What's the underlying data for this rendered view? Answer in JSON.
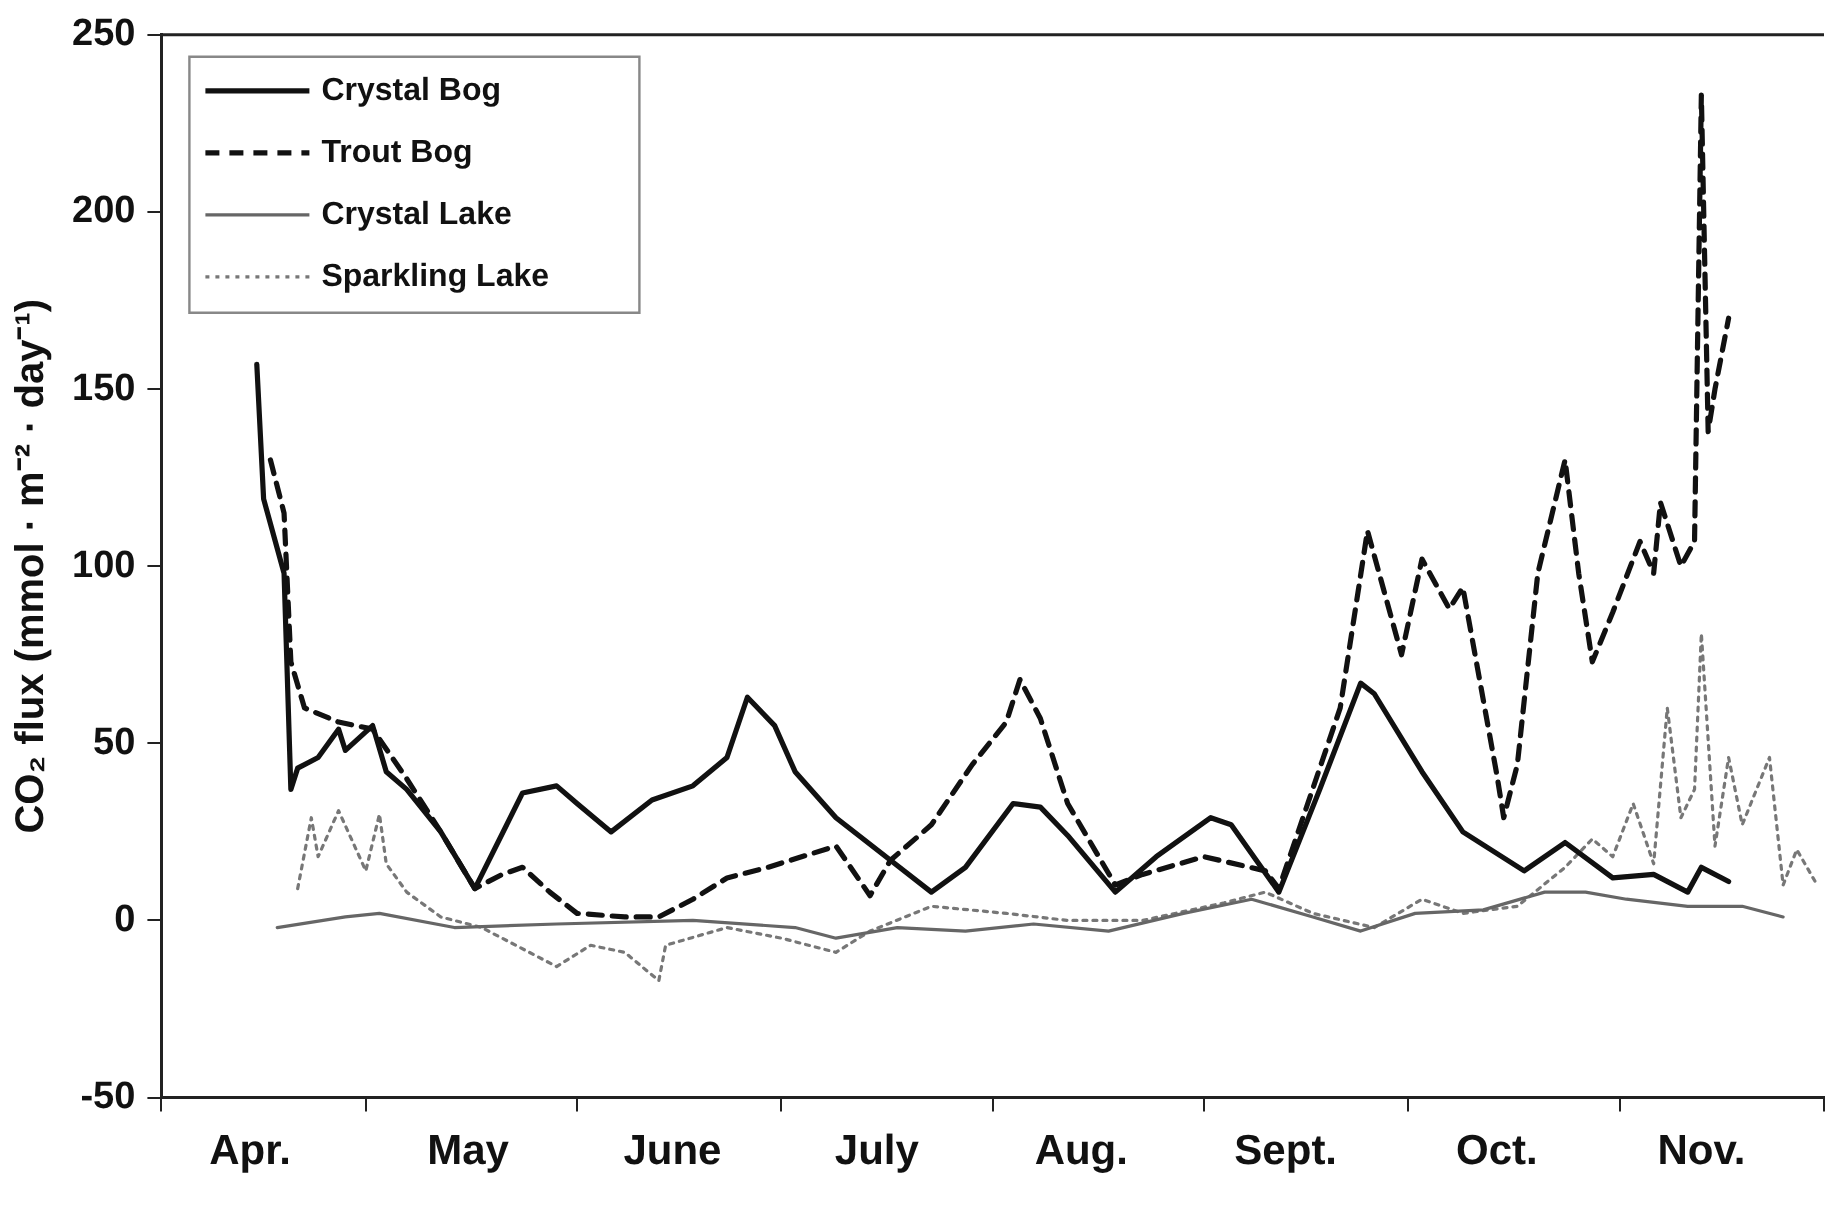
{
  "chart_data": {
    "type": "line",
    "ylabel": "CO₂ flux (mmol · m⁻² · day⁻¹)",
    "xlim": [
      "--04-01",
      "--12-01"
    ],
    "xticks": [
      {
        "value": "--04-01",
        "label": null
      },
      {
        "value": "--04-14",
        "label": "Apr."
      },
      {
        "value": "--05-01",
        "label": null
      },
      {
        "value": "--05-16",
        "label": "May"
      },
      {
        "value": "--06-01",
        "label": null
      },
      {
        "value": "--06-15",
        "label": "June"
      },
      {
        "value": "--07-01",
        "label": null
      },
      {
        "value": "--07-15",
        "label": "July"
      },
      {
        "value": "--08-01",
        "label": null
      },
      {
        "value": "--08-14",
        "label": "Aug."
      },
      {
        "value": "--09-01",
        "label": null
      },
      {
        "value": "--09-13",
        "label": "Sept."
      },
      {
        "value": "--10-01",
        "label": null
      },
      {
        "value": "--10-14",
        "label": "Oct."
      },
      {
        "value": "--11-01",
        "label": null
      },
      {
        "value": "--11-13",
        "label": "Nov."
      },
      {
        "value": "--12-01",
        "label": null
      }
    ],
    "ylim": [
      -50,
      250
    ],
    "yticks": [
      -50,
      0,
      50,
      100,
      150,
      200,
      250
    ],
    "grid": false,
    "legend": "top left",
    "marker": "none",
    "series": [
      {
        "name": "Crystal Bog",
        "color": "#111111",
        "line_style": "solid",
        "x": [
          "--04-15",
          "--04-16",
          "--04-19",
          "--04-20",
          "--04-21",
          "--04-24",
          "--04-27",
          "--04-28",
          "--05-02",
          "--05-04",
          "--05-07",
          "--05-12",
          "--05-17",
          "--05-24",
          "--05-29",
          "--06-01",
          "--06-06",
          "--06-12",
          "--06-18",
          "--06-23",
          "--06-26",
          "--06-30",
          "--07-03",
          "--07-09",
          "--07-17",
          "--07-23",
          "--07-28",
          "--08-04",
          "--08-08",
          "--08-12",
          "--08-19",
          "--08-25",
          "--09-02",
          "--09-05",
          "--09-12",
          "--09-18",
          "--09-24",
          "--09-26",
          "--10-03",
          "--10-09",
          "--10-18",
          "--10-24",
          "--10-31",
          "--11-06",
          "--11-11",
          "--11-13",
          "--11-17"
        ],
        "values": [
          157,
          119,
          98,
          37,
          43,
          46,
          54,
          48,
          55,
          42,
          37,
          25,
          9,
          36,
          38,
          33,
          25,
          34,
          38,
          46,
          63,
          55,
          42,
          29,
          17,
          8,
          15,
          33,
          32,
          24,
          8,
          18,
          29,
          27,
          8,
          37,
          67,
          64,
          42,
          25,
          14,
          22,
          12,
          13,
          8,
          15,
          11
        ]
      },
      {
        "name": "Trout Bog",
        "color": "#111111",
        "line_style": "dashed",
        "x": [
          "--04-17",
          "--04-19",
          "--04-20",
          "--04-22",
          "--04-27",
          "--05-02",
          "--05-07",
          "--05-12",
          "--05-17",
          "--05-21",
          "--05-24",
          "--05-28",
          "--06-01",
          "--06-08",
          "--06-13",
          "--06-18",
          "--06-23",
          "--06-29",
          "--07-09",
          "--07-14",
          "--07-17",
          "--07-23",
          "--07-29",
          "--08-03",
          "--08-05",
          "--08-08",
          "--08-12",
          "--08-19",
          "--08-23",
          "--09-01",
          "--09-10",
          "--09-12",
          "--09-21",
          "--09-25",
          "--09-30",
          "--10-03",
          "--10-07",
          "--10-09",
          "--10-14",
          "--10-15",
          "--10-17",
          "--10-20",
          "--10-24",
          "--10-26",
          "--10-28",
          "--10-31",
          "--11-04",
          "--11-06",
          "--11-07",
          "--11-10",
          "--11-12",
          "--11-13",
          "--11-14",
          "--11-15",
          "--11-17"
        ],
        "values": [
          130,
          115,
          73,
          60,
          56,
          54,
          40,
          25,
          9,
          13,
          15,
          8,
          2,
          1,
          1,
          6,
          12,
          15,
          21,
          7,
          17,
          27,
          44,
          56,
          68,
          57,
          33,
          10,
          13,
          18,
          14,
          9,
          60,
          110,
          75,
          102,
          88,
          94,
          41,
          29,
          44,
          98,
          130,
          98,
          73,
          87,
          107,
          98,
          118,
          100,
          107,
          233,
          138,
          150,
          170
        ]
      },
      {
        "name": "Crystal Lake",
        "color": "#666666",
        "line_style": "solid",
        "x": [
          "--04-18",
          "--04-28",
          "--05-03",
          "--05-14",
          "--05-29",
          "--06-18",
          "--07-03",
          "--07-09",
          "--07-18",
          "--07-28",
          "--08-07",
          "--08-18",
          "--08-29",
          "--09-08",
          "--09-17",
          "--09-24",
          "--10-02",
          "--10-12",
          "--10-21",
          "--10-27",
          "--11-02",
          "--11-11",
          "--11-19",
          "--11-25"
        ],
        "values": [
          -2,
          1,
          2,
          -2,
          -1,
          0,
          -2,
          -5,
          -2,
          -3,
          -1,
          -3,
          2,
          6,
          1,
          -3,
          2,
          3,
          8,
          8,
          6,
          4,
          4,
          1
        ]
      },
      {
        "name": "Sparkling Lake",
        "color": "#777777",
        "line_style": "dotted",
        "x": [
          "--04-21",
          "--04-23",
          "--04-24",
          "--04-27",
          "--05-01",
          "--05-03",
          "--05-04",
          "--05-07",
          "--05-12",
          "--05-18",
          "--05-25",
          "--05-29",
          "--06-03",
          "--06-08",
          "--06-13",
          "--06-14",
          "--06-23",
          "--07-01",
          "--07-09",
          "--07-14",
          "--07-23",
          "--08-03",
          "--08-12",
          "--08-23",
          "--09-04",
          "--09-10",
          "--09-17",
          "--09-26",
          "--10-03",
          "--10-09",
          "--10-17",
          "--10-24",
          "--10-28",
          "--10-31",
          "--11-03",
          "--11-06",
          "--11-08",
          "--11-10",
          "--11-12",
          "--11-13",
          "--11-15",
          "--11-17",
          "--11-19",
          "--11-23",
          "--11-25",
          "--11-27",
          "--11-30"
        ],
        "values": [
          9,
          29,
          18,
          31,
          14,
          30,
          16,
          8,
          1,
          -2,
          -9,
          -13,
          -7,
          -9,
          -17,
          -7,
          -2,
          -5,
          -9,
          -3,
          4,
          2,
          0,
          0,
          5,
          8,
          2,
          -2,
          6,
          2,
          4,
          15,
          23,
          18,
          33,
          16,
          60,
          29,
          37,
          81,
          21,
          46,
          27,
          46,
          10,
          20,
          10
        ]
      }
    ]
  }
}
